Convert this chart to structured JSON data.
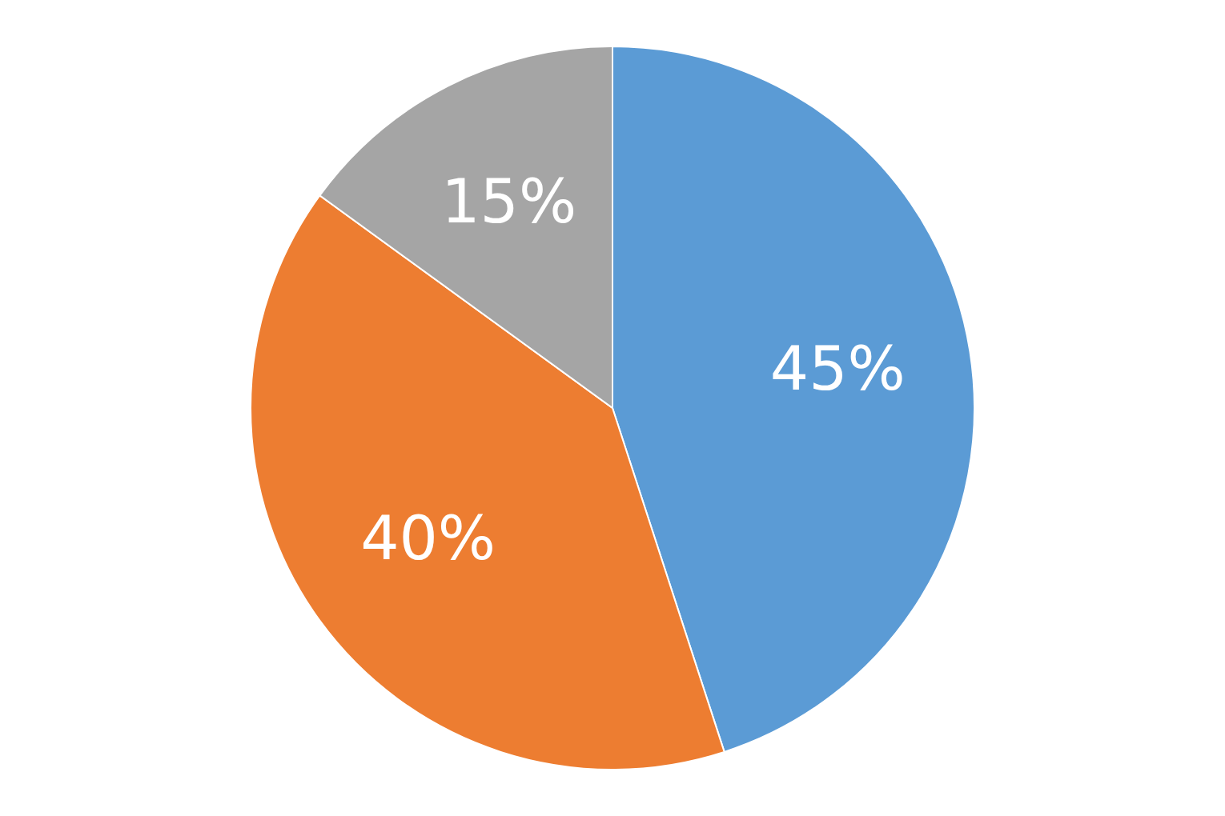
{
  "chart_data": {
    "type": "pie",
    "categories": [
      null,
      null,
      null
    ],
    "values": [
      45,
      40,
      15
    ],
    "colors": [
      "#5b9bd5",
      "#ed7d31",
      "#a5a5a5"
    ],
    "value_labels": [
      "45%",
      "40%",
      "15%"
    ],
    "legend": false
  }
}
